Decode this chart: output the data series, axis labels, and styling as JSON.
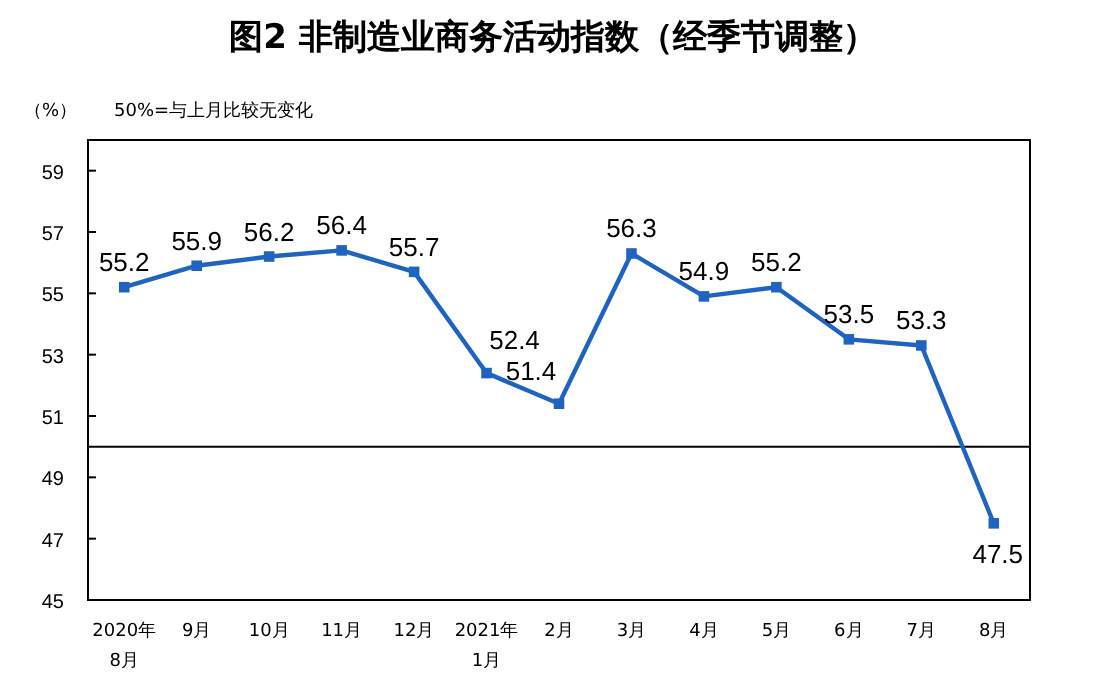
{
  "chart_data": {
    "type": "line",
    "title": "图2  非制造业商务活动指数（经季节调整）",
    "ylabel": "（%）",
    "annotations": [
      "50%=与上月比较无变化"
    ],
    "categories": [
      "2020年\n8月",
      "9月",
      "10月",
      "11月",
      "12月",
      "2021年\n1月",
      "2月",
      "3月",
      "4月",
      "5月",
      "6月",
      "7月",
      "8月"
    ],
    "series": [
      {
        "color": "#1f64c0",
        "values": [
          55.2,
          55.9,
          56.2,
          56.4,
          55.7,
          52.4,
          51.4,
          56.3,
          54.9,
          55.2,
          53.5,
          53.3,
          47.5
        ]
      }
    ],
    "ylim": [
      45,
      60
    ],
    "yticks": [
      45,
      47,
      49,
      51,
      53,
      55,
      57,
      59
    ],
    "ref_lines": [
      {
        "axis": "y",
        "value": 50,
        "color": "#000000"
      }
    ],
    "data_labels": true,
    "marker": "square",
    "grid": false
  }
}
